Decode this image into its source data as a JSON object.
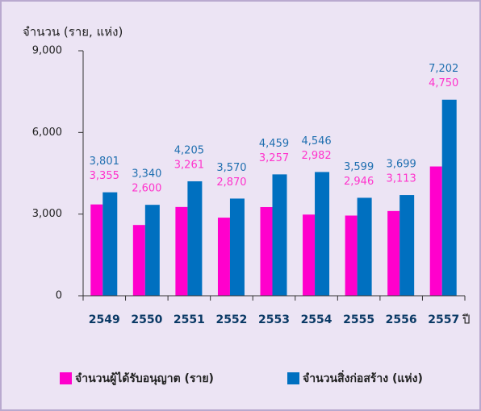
{
  "chart_data": {
    "type": "bar",
    "ylabel": "จำนวน (ราย, แห่ง)",
    "xlabel": "ปี",
    "categories": [
      "2549",
      "2550",
      "2551",
      "2552",
      "2553",
      "2554",
      "2555",
      "2556",
      "2557"
    ],
    "series": [
      {
        "name": "จำนวนผู้ได้รับอนุญาต (ราย)",
        "color": "#ff00cc",
        "values": [
          3355,
          2600,
          3261,
          2870,
          3257,
          2982,
          2946,
          3113,
          4750
        ],
        "value_labels": [
          "3,355",
          "2,600",
          "3,261",
          "2,870",
          "3,257",
          "2,982",
          "2,946",
          "3,113",
          "4,750"
        ]
      },
      {
        "name": "จำนวนสิ่งก่อสร้าง (แห่ง)",
        "color": "#0070c0",
        "values": [
          3801,
          3340,
          4205,
          3570,
          4459,
          4546,
          3599,
          3699,
          7202
        ],
        "value_labels": [
          "3,801",
          "3,340",
          "4,205",
          "3,570",
          "4,459",
          "4,546",
          "3,599",
          "3,699",
          "7,202"
        ]
      }
    ],
    "ylim": [
      0,
      9000
    ],
    "yticks": [
      0,
      {
        "value": 3000,
        "label": "3,000"
      },
      {
        "value": 6000,
        "label": "6,000"
      },
      {
        "value": 9000,
        "label": "9,000"
      }
    ],
    "grid": false,
    "legend": "bottom"
  }
}
